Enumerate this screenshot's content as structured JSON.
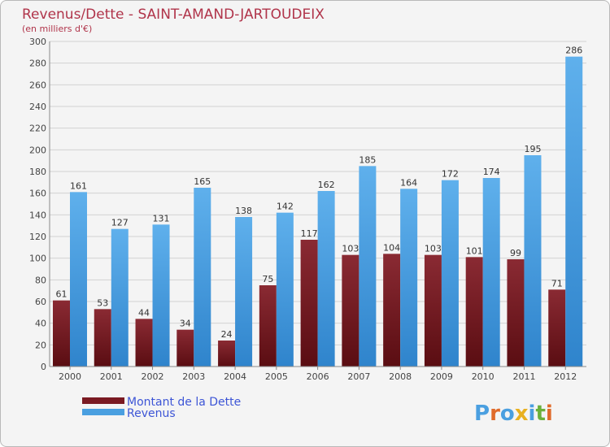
{
  "chart_data": {
    "type": "bar",
    "title": "Revenus/Dette - SAINT-AMAND-JARTOUDEIX",
    "subtitle": "(en milliers d'€)",
    "categories": [
      "2000",
      "2001",
      "2002",
      "2003",
      "2004",
      "2005",
      "2006",
      "2007",
      "2008",
      "2009",
      "2010",
      "2011",
      "2012"
    ],
    "series": [
      {
        "name": "Montant de la Dette",
        "color": "#7a1a22",
        "values": [
          61,
          53,
          44,
          34,
          24,
          75,
          117,
          103,
          104,
          103,
          101,
          99,
          71
        ]
      },
      {
        "name": "Revenus",
        "color": "#4a9fe0",
        "values": [
          161,
          127,
          131,
          165,
          138,
          142,
          162,
          185,
          164,
          172,
          174,
          195,
          286
        ]
      }
    ],
    "ylim": [
      0,
      300
    ],
    "yticks": [
      0,
      20,
      40,
      60,
      80,
      100,
      120,
      140,
      160,
      180,
      200,
      220,
      240,
      260,
      280,
      300
    ],
    "grid": true,
    "legend": "bottom-left"
  },
  "logo": {
    "text": "Proxiti",
    "colors": [
      "#4a9fe0",
      "#e06a2a",
      "#4a9fe0",
      "#e8b020",
      "#4a9fe0",
      "#6ab03a",
      "#e06a2a"
    ]
  }
}
